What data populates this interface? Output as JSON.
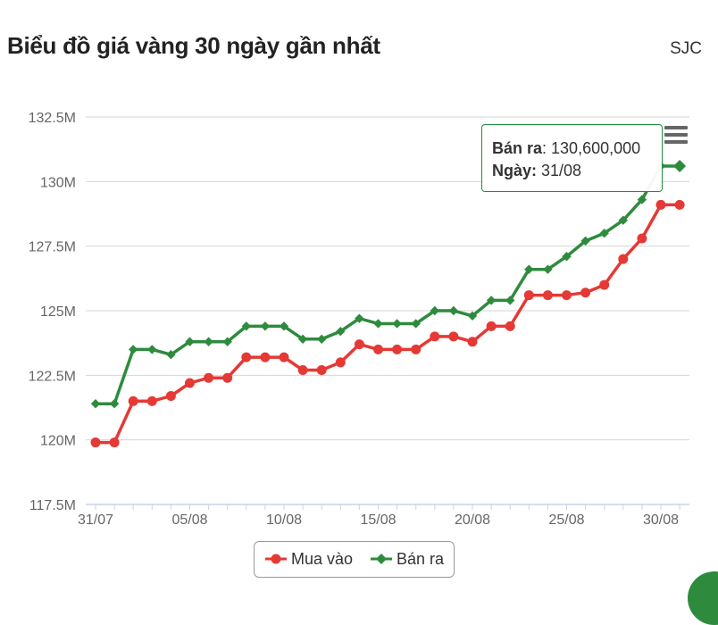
{
  "header": {
    "title": "Biểu đồ giá vàng 30 ngày gần nhất",
    "brand": "SJC"
  },
  "tooltip": {
    "line1_label": "Bán ra",
    "line1_value": ": 130,600,000",
    "line2_label": "Ngày:",
    "line2_value": " 31/08"
  },
  "menu": {
    "icon": "hamburger-menu-icon"
  },
  "colors": {
    "buy": "#e53935",
    "sell": "#2e8b3e",
    "grid": "#d6d6d6",
    "axis": "#666666"
  },
  "chart_data": {
    "type": "line",
    "title": "Biểu đồ giá vàng 30 ngày gần nhất",
    "x": [
      "31/07",
      "01/08",
      "02/08",
      "03/08",
      "04/08",
      "05/08",
      "06/08",
      "07/08",
      "08/08",
      "09/08",
      "10/08",
      "11/08",
      "12/08",
      "13/08",
      "14/08",
      "15/08",
      "16/08",
      "17/08",
      "18/08",
      "19/08",
      "20/08",
      "21/08",
      "22/08",
      "23/08",
      "24/08",
      "25/08",
      "26/08",
      "27/08",
      "28/08",
      "29/08",
      "30/08",
      "31/08"
    ],
    "x_tick_labels": [
      "31/07",
      "05/08",
      "10/08",
      "15/08",
      "20/08",
      "25/08",
      "30/08"
    ],
    "x_tick_indices": [
      0,
      5,
      10,
      15,
      20,
      25,
      30
    ],
    "y_tick_labels": [
      "117.5M",
      "120M",
      "122.5M",
      "125M",
      "127.5M",
      "130M",
      "132.5M"
    ],
    "y_ticks": [
      117500000,
      120000000,
      122500000,
      125000000,
      127500000,
      130000000,
      132500000
    ],
    "ylim": [
      117500000,
      132500000
    ],
    "grid": true,
    "legend_position": "bottom-center",
    "series": [
      {
        "name": "Mua vào",
        "marker": "circle",
        "values": [
          119900000,
          119900000,
          121500000,
          121500000,
          121700000,
          122200000,
          122400000,
          122400000,
          123200000,
          123200000,
          123200000,
          122700000,
          122700000,
          123000000,
          123700000,
          123500000,
          123500000,
          123500000,
          124000000,
          124000000,
          123800000,
          124400000,
          124400000,
          125600000,
          125600000,
          125600000,
          125700000,
          126000000,
          127000000,
          127800000,
          129100000,
          129100000
        ]
      },
      {
        "name": "Bán ra",
        "marker": "diamond",
        "values": [
          121400000,
          121400000,
          123500000,
          123500000,
          123300000,
          123800000,
          123800000,
          123800000,
          124400000,
          124400000,
          124400000,
          123900000,
          123900000,
          124200000,
          124700000,
          124500000,
          124500000,
          124500000,
          125000000,
          125000000,
          124800000,
          125400000,
          125400000,
          126600000,
          126600000,
          127100000,
          127700000,
          128000000,
          128500000,
          129300000,
          130600000,
          130600000
        ]
      }
    ]
  }
}
